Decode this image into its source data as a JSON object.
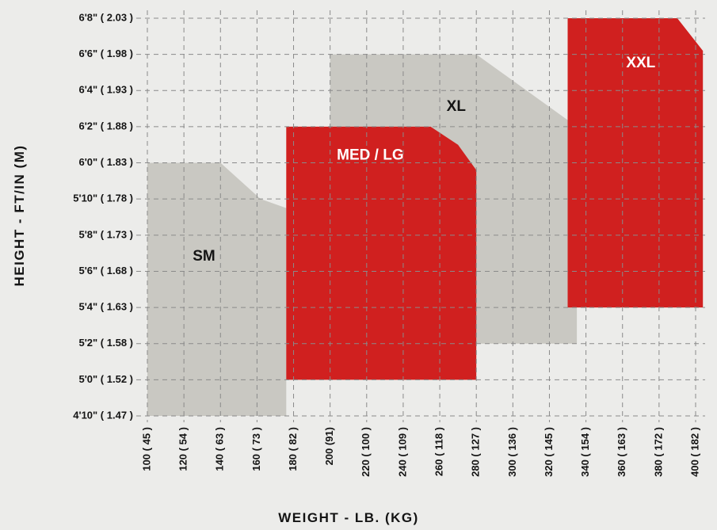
{
  "chart_data": {
    "type": "area",
    "xlabel": "WEIGHT - LB. (KG)",
    "ylabel": "HEIGHT - FT/IN (M)",
    "x_ticks": [
      {
        "value": 100,
        "label": "100 ( 45 )"
      },
      {
        "value": 120,
        "label": "120 ( 54 )"
      },
      {
        "value": 140,
        "label": "140 ( 63 )"
      },
      {
        "value": 160,
        "label": "160 ( 73 )"
      },
      {
        "value": 180,
        "label": "180 ( 82 )"
      },
      {
        "value": 200,
        "label": "200 (91)"
      },
      {
        "value": 220,
        "label": "220 ( 100 )"
      },
      {
        "value": 240,
        "label": "240 ( 109 )"
      },
      {
        "value": 260,
        "label": "260 ( 118 )"
      },
      {
        "value": 280,
        "label": "280 ( 127 )"
      },
      {
        "value": 300,
        "label": "300 ( 136 )"
      },
      {
        "value": 320,
        "label": "320 ( 145 )"
      },
      {
        "value": 340,
        "label": "340 ( 154 )"
      },
      {
        "value": 360,
        "label": "360 ( 163 )"
      },
      {
        "value": 380,
        "label": "380 ( 172 )"
      },
      {
        "value": 400,
        "label": "400 ( 182 )"
      }
    ],
    "y_ticks": [
      {
        "value": 58,
        "label": "4'10\" ( 1.47 )"
      },
      {
        "value": 60,
        "label": "5'0\" ( 1.52 )"
      },
      {
        "value": 62,
        "label": "5'2\" ( 1.58 )"
      },
      {
        "value": 64,
        "label": "5'4\" ( 1.63 )"
      },
      {
        "value": 66,
        "label": "5'6\" ( 1.68 )"
      },
      {
        "value": 68,
        "label": "5'8\" ( 1.73 )"
      },
      {
        "value": 70,
        "label": "5'10\" ( 1.78 )"
      },
      {
        "value": 72,
        "label": "6'0\" ( 1.83 )"
      },
      {
        "value": 74,
        "label": "6'2\" ( 1.88 )"
      },
      {
        "value": 76,
        "label": "6'4\" ( 1.93 )"
      },
      {
        "value": 78,
        "label": "6'6\" ( 1.98 )"
      },
      {
        "value": 80,
        "label": "6'8\" ( 2.03 )"
      }
    ],
    "xlim": [
      100,
      400
    ],
    "ylim": [
      58,
      80
    ],
    "grid": true,
    "regions": [
      {
        "name": "SM",
        "color": "#c9c8c2",
        "label_at": [
          131,
          66.8
        ],
        "polygon": [
          [
            100,
            58
          ],
          [
            100,
            72
          ],
          [
            140,
            72
          ],
          [
            162,
            70
          ],
          [
            176,
            69.5
          ],
          [
            176,
            58
          ]
        ]
      },
      {
        "name": "XL",
        "color": "#c9c8c2",
        "label_at": [
          269,
          75.1
        ],
        "polygon": [
          [
            200,
            62
          ],
          [
            200,
            78
          ],
          [
            280,
            78
          ],
          [
            335,
            74
          ],
          [
            335,
            62
          ]
        ]
      },
      {
        "name": "XXL",
        "color": "#d0201f",
        "label_at": [
          370,
          77.5
        ],
        "polygon": [
          [
            330,
            64
          ],
          [
            330,
            80
          ],
          [
            390,
            80
          ],
          [
            404,
            78.2
          ],
          [
            404,
            64
          ]
        ]
      },
      {
        "name": "MED / LG",
        "color": "#d0201f",
        "label_at": [
          222,
          72.4
        ],
        "polygon": [
          [
            176,
            60
          ],
          [
            176,
            74
          ],
          [
            255,
            74
          ],
          [
            270,
            73
          ],
          [
            280,
            71.6
          ],
          [
            280,
            60
          ]
        ]
      }
    ]
  },
  "colors": {
    "background": "#ececea",
    "red": "#d0201f",
    "gray": "#c9c8c2",
    "grid": "#8a8a8a",
    "text": "#141414",
    "label_red_text": "#ffffff",
    "label_gray_text": "#141414"
  }
}
